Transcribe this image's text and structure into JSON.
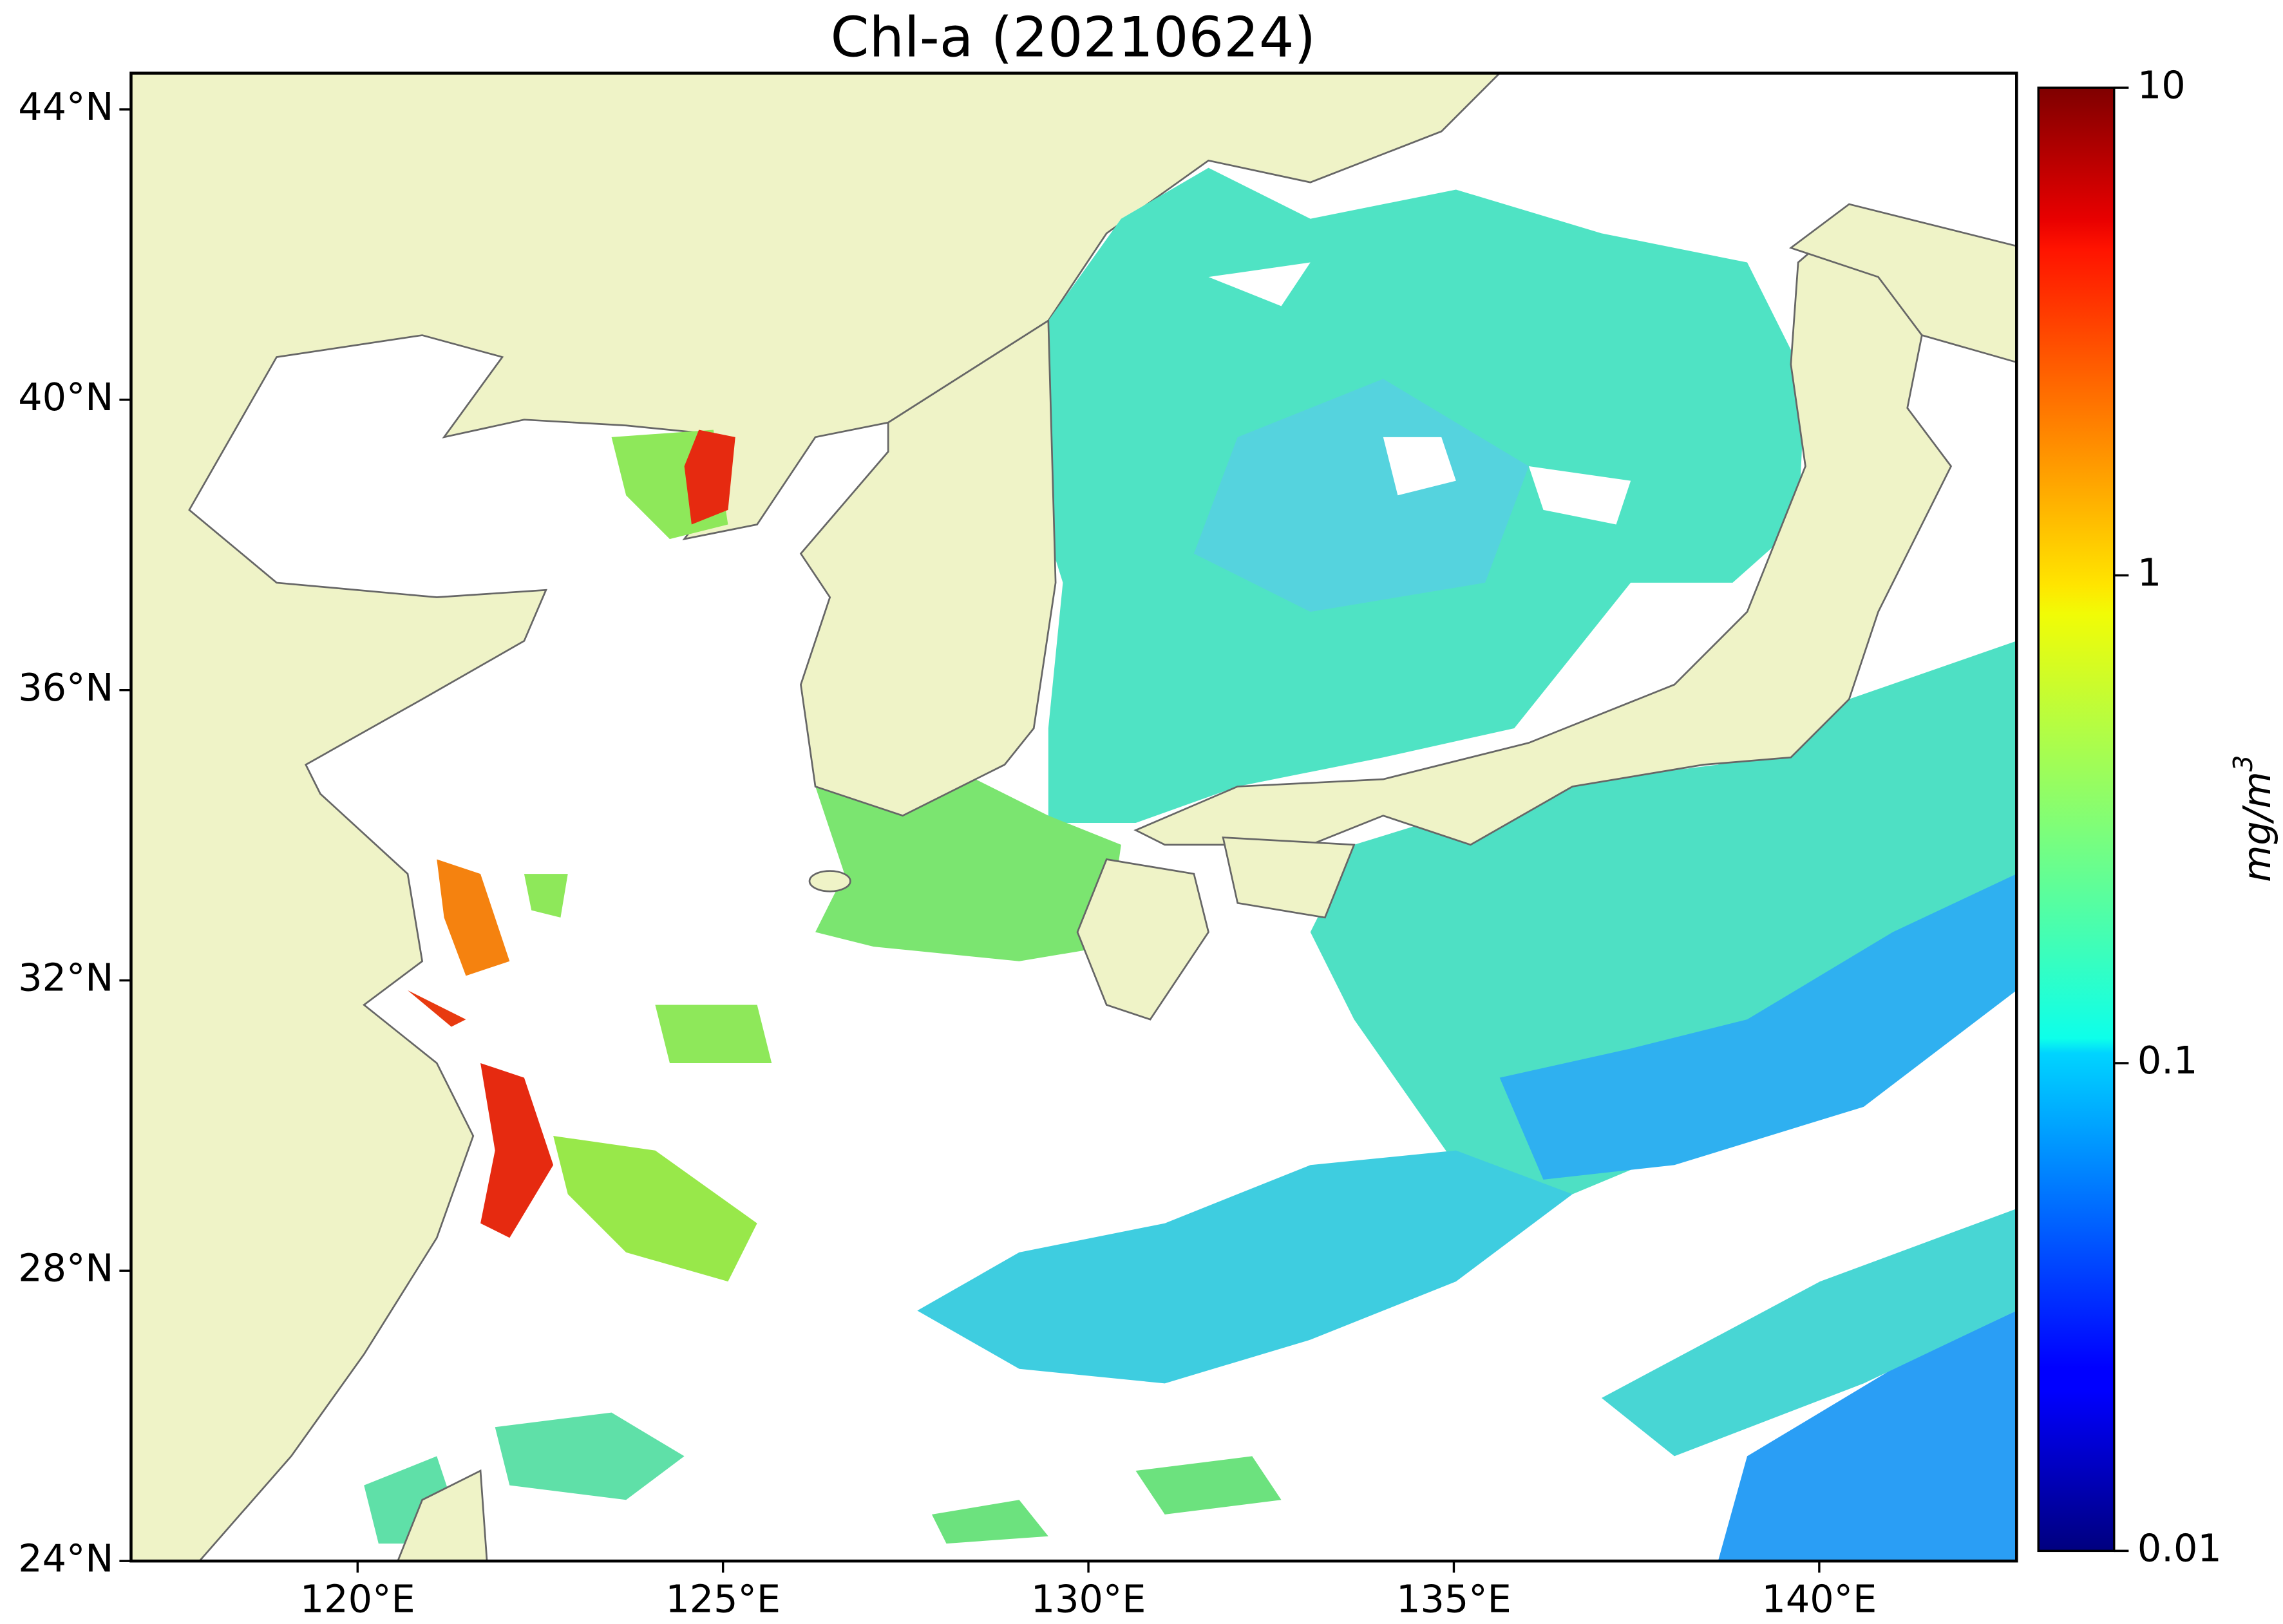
{
  "chart_data": {
    "type": "map",
    "title": "Chl-a (20210624)",
    "xlim": [
      116.9,
      142.7
    ],
    "ylim": [
      24,
      44.5
    ],
    "xticks": [
      {
        "value": 120,
        "label": "120°E"
      },
      {
        "value": 125,
        "label": "125°E"
      },
      {
        "value": 130,
        "label": "130°E"
      },
      {
        "value": 135,
        "label": "135°E"
      },
      {
        "value": 140,
        "label": "140°E"
      }
    ],
    "yticks": [
      {
        "value": 24,
        "label": "24°N"
      },
      {
        "value": 28,
        "label": "28°N"
      },
      {
        "value": 32,
        "label": "32°N"
      },
      {
        "value": 36,
        "label": "36°N"
      },
      {
        "value": 40,
        "label": "40°N"
      },
      {
        "value": 44,
        "label": "44°N"
      }
    ],
    "colorbar": {
      "label": "mg/m",
      "label_superscript": "3",
      "scale": "log",
      "colormap": "jet",
      "lim": [
        0.01,
        10
      ],
      "ticks": [
        0.01,
        0.1,
        1,
        10
      ]
    }
  }
}
